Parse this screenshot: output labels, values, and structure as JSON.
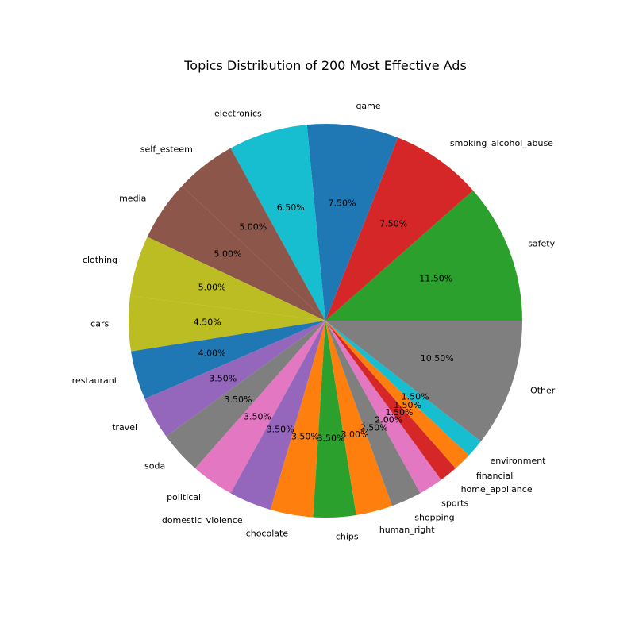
{
  "chart_data": {
    "type": "pie",
    "title": "Topics Distribution of 200 Most Effective Ads",
    "start_angle_deg": 0,
    "direction": "counterclockwise",
    "slices": [
      {
        "label": "safety",
        "value": 11.5,
        "pct_label": "11.50%",
        "color": "#2ca02c"
      },
      {
        "label": "smoking_alcohol_abuse",
        "value": 7.5,
        "pct_label": "7.50%",
        "color": "#d62728"
      },
      {
        "label": "game",
        "value": 7.5,
        "pct_label": "7.50%",
        "color": "#1f77b4"
      },
      {
        "label": "electronics",
        "value": 6.5,
        "pct_label": "6.50%",
        "color": "#17becf"
      },
      {
        "label": "self_esteem",
        "value": 5.0,
        "pct_label": "5.00%",
        "color": "#8c564b"
      },
      {
        "label": "media",
        "value": 5.0,
        "pct_label": "5.00%",
        "color": "#8c564b"
      },
      {
        "label": "clothing",
        "value": 5.0,
        "pct_label": "5.00%",
        "color": "#bcbd22"
      },
      {
        "label": "cars",
        "value": 4.5,
        "pct_label": "4.50%",
        "color": "#bcbd22"
      },
      {
        "label": "restaurant",
        "value": 4.0,
        "pct_label": "4.00%",
        "color": "#1f77b4"
      },
      {
        "label": "travel",
        "value": 3.5,
        "pct_label": "3.50%",
        "color": "#9467bd"
      },
      {
        "label": "soda",
        "value": 3.5,
        "pct_label": "3.50%",
        "color": "#7f7f7f"
      },
      {
        "label": "political",
        "value": 3.5,
        "pct_label": "3.50%",
        "color": "#e377c2"
      },
      {
        "label": "domestic_violence",
        "value": 3.5,
        "pct_label": "3.50%",
        "color": "#9467bd"
      },
      {
        "label": "chocolate",
        "value": 3.5,
        "pct_label": "3.50%",
        "color": "#ff7f0e"
      },
      {
        "label": "chips",
        "value": 3.5,
        "pct_label": "3.50%",
        "color": "#2ca02c"
      },
      {
        "label": "human_right",
        "value": 3.0,
        "pct_label": "3.00%",
        "color": "#ff7f0e"
      },
      {
        "label": "shopping",
        "value": 2.5,
        "pct_label": "2.50%",
        "color": "#7f7f7f"
      },
      {
        "label": "sports",
        "value": 2.0,
        "pct_label": "2.00%",
        "color": "#e377c2"
      },
      {
        "label": "home_appliance",
        "value": 1.5,
        "pct_label": "1.50%",
        "color": "#d62728"
      },
      {
        "label": "financial",
        "value": 1.5,
        "pct_label": "1.50%",
        "color": "#ff7f0e"
      },
      {
        "label": "environment",
        "value": 1.5,
        "pct_label": "1.50%",
        "color": "#17becf"
      },
      {
        "label": "Other",
        "value": 10.5,
        "pct_label": "10.50%",
        "color": "#7f7f7f"
      }
    ]
  }
}
